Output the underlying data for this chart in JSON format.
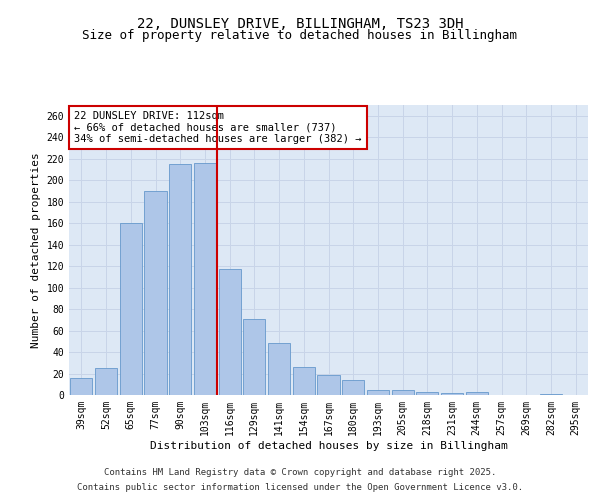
{
  "title_line1": "22, DUNSLEY DRIVE, BILLINGHAM, TS23 3DH",
  "title_line2": "Size of property relative to detached houses in Billingham",
  "xlabel": "Distribution of detached houses by size in Billingham",
  "ylabel": "Number of detached properties",
  "categories": [
    "39sqm",
    "52sqm",
    "65sqm",
    "77sqm",
    "90sqm",
    "103sqm",
    "116sqm",
    "129sqm",
    "141sqm",
    "154sqm",
    "167sqm",
    "180sqm",
    "193sqm",
    "205sqm",
    "218sqm",
    "231sqm",
    "244sqm",
    "257sqm",
    "269sqm",
    "282sqm",
    "295sqm"
  ],
  "values": [
    16,
    25,
    160,
    190,
    215,
    216,
    117,
    71,
    48,
    26,
    19,
    14,
    5,
    5,
    3,
    2,
    3,
    0,
    0,
    1,
    0
  ],
  "bar_color": "#aec6e8",
  "bar_edge_color": "#6699cc",
  "vline_color": "#cc0000",
  "vline_x": 5.5,
  "annotation_line1": "22 DUNSLEY DRIVE: 112sqm",
  "annotation_line2": "← 66% of detached houses are smaller (737)",
  "annotation_line3": "34% of semi-detached houses are larger (382) →",
  "annotation_box_color": "#ffffff",
  "annotation_box_edge_color": "#cc0000",
  "ylim": [
    0,
    270
  ],
  "yticks": [
    0,
    20,
    40,
    60,
    80,
    100,
    120,
    140,
    160,
    180,
    200,
    220,
    240,
    260
  ],
  "grid_color": "#c8d4e8",
  "background_color": "#dde8f5",
  "footer_line1": "Contains HM Land Registry data © Crown copyright and database right 2025.",
  "footer_line2": "Contains public sector information licensed under the Open Government Licence v3.0.",
  "title_fontsize": 10,
  "subtitle_fontsize": 9,
  "axis_label_fontsize": 8,
  "tick_fontsize": 7,
  "annotation_fontsize": 7.5,
  "footer_fontsize": 6.5
}
